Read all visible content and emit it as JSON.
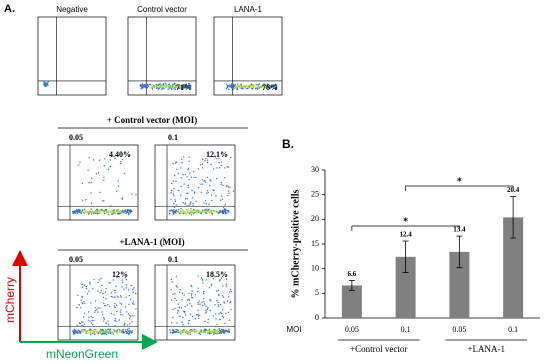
{
  "panel_a": {
    "label": "A.",
    "top_plots": [
      {
        "title": "Negative"
      },
      {
        "title": "Control vector",
        "percent": "71%"
      },
      {
        "title": "LANA-1",
        "percent": "76%"
      }
    ],
    "groups": [
      {
        "title": "+ Control vector (MOI)",
        "plots": [
          {
            "moi": "0.05",
            "percent": "4.40%"
          },
          {
            "moi": "0.1",
            "percent": "12.1%"
          }
        ]
      },
      {
        "title": "+LANA-1 (MOI)",
        "plots": [
          {
            "moi": "0.05",
            "percent": "12%"
          },
          {
            "moi": "0.1",
            "percent": "18.5%"
          }
        ]
      }
    ],
    "y_axis": "mCherry",
    "x_axis": "mNeonGreen"
  },
  "chart_data": {
    "type": "bar",
    "label": "B.",
    "ylabel": "% mCherry-positive cells",
    "categories": [
      "0.05",
      "0.1",
      "0.05",
      "0.1"
    ],
    "category_axis_label": "MOI",
    "groups": [
      "+Control vector",
      "+LANA-1"
    ],
    "values": [
      6.6,
      12.4,
      13.4,
      20.4
    ],
    "errors": [
      1.0,
      3.2,
      3.2,
      4.2
    ],
    "annotations": [
      "*",
      "*"
    ],
    "color": "#808080",
    "ylim": [
      0,
      30
    ],
    "yticks": [
      0,
      5,
      10,
      15,
      20,
      25,
      30
    ]
  }
}
